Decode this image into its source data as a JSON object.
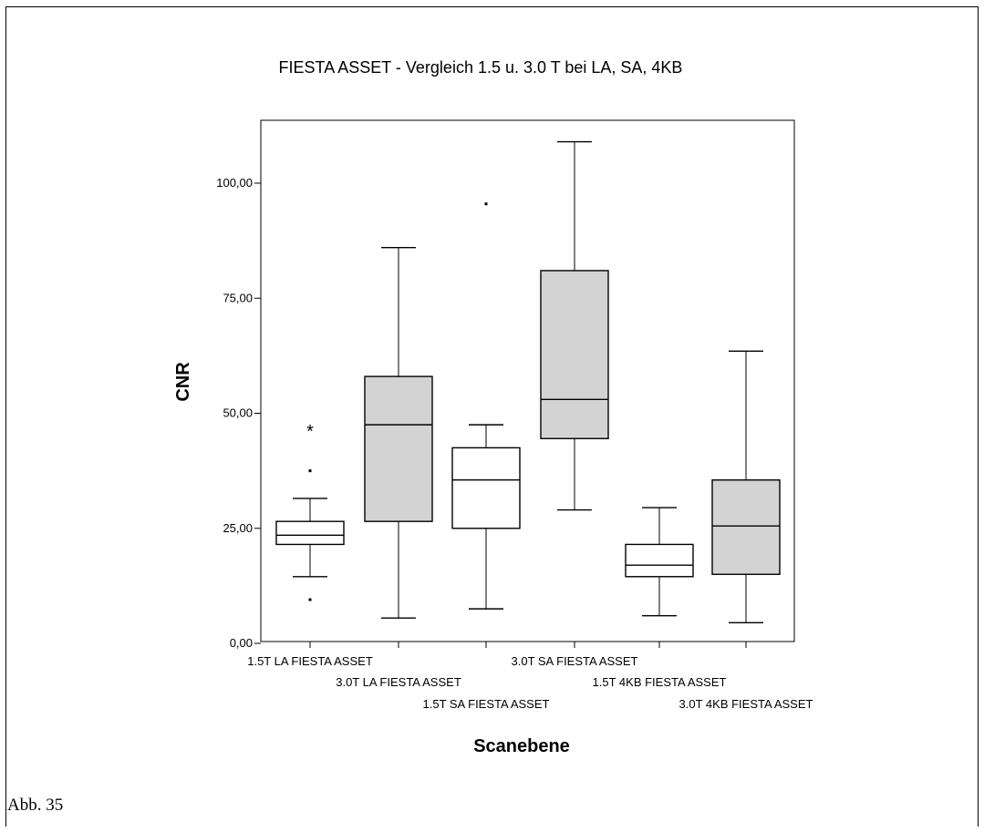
{
  "caption": "Abb. 35",
  "chart_data": {
    "type": "boxplot",
    "title": "FIESTA ASSET - Vergleich 1.5 u. 3.0 T bei LA, SA, 4KB",
    "xlabel": "Scanebene",
    "ylabel": "CNR",
    "ylim": [
      0,
      110
    ],
    "yticks": [
      0,
      25,
      50,
      75,
      100
    ],
    "ytick_labels": [
      "0,00",
      "25,00",
      "50,00",
      "75,00",
      "100,00"
    ],
    "grid": false,
    "categories": [
      "1.5T LA FIESTA ASSET",
      "3.0T LA FIESTA ASSET",
      "1.5T SA FIESTA ASSET",
      "3.0T SA FIESTA ASSET",
      "1.5T 4KB FIESTA ASSET",
      "3.0T 4KB FIESTA ASSET"
    ],
    "boxes": [
      {
        "min": 14.5,
        "q1": 21.5,
        "median": 23.5,
        "q3": 26.5,
        "max": 31.5,
        "fill": "#ffffff",
        "outliers": [
          9.5,
          37.5
        ],
        "extremes": [
          46.5
        ]
      },
      {
        "min": 5.5,
        "q1": 26.5,
        "median": 47.5,
        "q3": 58.0,
        "max": 86.0,
        "fill": "#d3d3d3",
        "outliers": [],
        "extremes": []
      },
      {
        "min": 7.5,
        "q1": 25.0,
        "median": 35.5,
        "q3": 42.5,
        "max": 47.5,
        "fill": "#ffffff",
        "outliers": [
          95.5
        ],
        "extremes": []
      },
      {
        "min": 29.0,
        "q1": 44.5,
        "median": 53.0,
        "q3": 81.0,
        "max": 109.0,
        "fill": "#d3d3d3",
        "outliers": [],
        "extremes": []
      },
      {
        "min": 6.0,
        "q1": 14.5,
        "median": 17.0,
        "q3": 21.5,
        "max": 29.5,
        "fill": "#ffffff",
        "outliers": [],
        "extremes": []
      },
      {
        "min": 4.5,
        "q1": 15.0,
        "median": 25.5,
        "q3": 35.5,
        "max": 63.5,
        "fill": "#d3d3d3",
        "outliers": [],
        "extremes": []
      }
    ]
  }
}
